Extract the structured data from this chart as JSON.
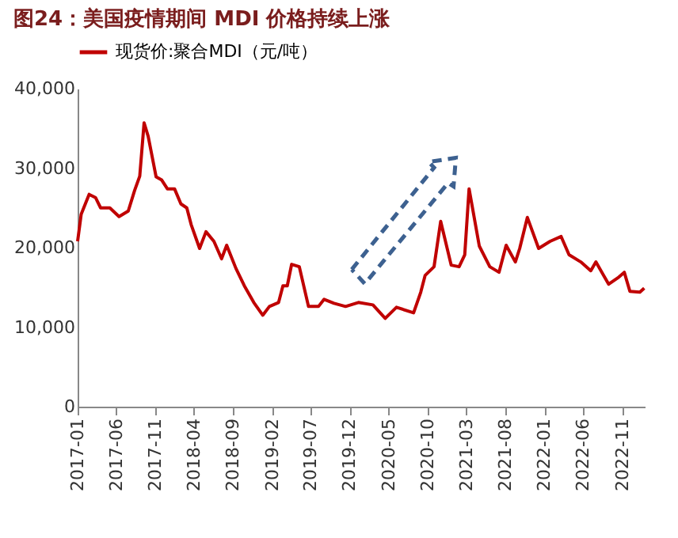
{
  "chart_data": {
    "type": "line",
    "title": "图24：美国疫情期间 MDI 价格持续上涨",
    "x": [
      "2017-01-01",
      "2017-01-15",
      "2017-02-15",
      "2017-03-12",
      "2017-04-01",
      "2017-05-07",
      "2017-06-12",
      "2017-07-18",
      "2017-08-12",
      "2017-09-01",
      "2017-09-18",
      "2017-10-04",
      "2017-11-04",
      "2017-11-26",
      "2017-12-18",
      "2018-01-15",
      "2018-02-09",
      "2018-03-04",
      "2018-03-21",
      "2018-04-23",
      "2018-05-18",
      "2018-06-18",
      "2018-07-18",
      "2018-08-07",
      "2018-09-12",
      "2018-10-15",
      "2018-11-21",
      "2018-12-26",
      "2019-01-21",
      "2019-02-26",
      "2019-03-15",
      "2019-04-01",
      "2019-04-18",
      "2019-05-18",
      "2019-06-23",
      "2019-08-01",
      "2019-08-23",
      "2019-10-01",
      "2019-11-15",
      "2020-01-04",
      "2020-03-01",
      "2020-04-18",
      "2020-06-01",
      "2020-08-07",
      "2020-09-04",
      "2020-09-21",
      "2020-10-26",
      "2020-11-21",
      "2021-01-01",
      "2021-02-01",
      "2021-02-23",
      "2021-03-12",
      "2021-04-21",
      "2021-06-01",
      "2021-07-07",
      "2021-08-04",
      "2021-09-09",
      "2021-09-26",
      "2021-10-26",
      "2021-12-09",
      "2022-01-23",
      "2022-03-07",
      "2022-04-07",
      "2022-05-23",
      "2022-07-01",
      "2022-07-21",
      "2022-09-09",
      "2022-10-15",
      "2022-11-09",
      "2022-12-01",
      "2023-01-09",
      "2023-01-26"
    ],
    "series": [
      {
        "name": "现货价:聚合MDI（元/吨）",
        "color": "#c00000",
        "values": [
          20800,
          24200,
          26700,
          26300,
          25000,
          25000,
          23900,
          24600,
          27200,
          29000,
          35700,
          34000,
          28900,
          28500,
          27400,
          27400,
          25500,
          25000,
          22900,
          19900,
          22000,
          20800,
          18600,
          20300,
          17400,
          15200,
          13100,
          11500,
          12600,
          13100,
          15200,
          15200,
          17900,
          17600,
          12600,
          12600,
          13500,
          13000,
          12600,
          13100,
          12800,
          11100,
          12500,
          11800,
          14400,
          16500,
          17600,
          23300,
          17800,
          17600,
          19100,
          27400,
          20200,
          17600,
          16900,
          20300,
          18200,
          19900,
          23800,
          19900,
          20800,
          21400,
          19100,
          18200,
          17100,
          18200,
          15400,
          16200,
          16900,
          14500,
          14400,
          14900
        ]
      }
    ],
    "xlim": [
      "2017-01-01",
      "2023-01-28"
    ],
    "xticks": [
      "2017-01",
      "2017-06",
      "2017-11",
      "2018-04",
      "2018-09",
      "2019-02",
      "2019-07",
      "2019-12",
      "2020-05",
      "2020-10",
      "2021-03",
      "2021-08",
      "2022-01",
      "2022-06",
      "2022-11"
    ],
    "ylim": [
      0,
      40000
    ],
    "yticks": [
      0,
      {
        "value": 10000,
        "label": "10,000"
      },
      {
        "value": 20000,
        "label": "20,000"
      },
      {
        "value": 30000,
        "label": "30,000"
      },
      {
        "value": 40000,
        "label": "40,000"
      }
    ],
    "grid": false,
    "legend": "top",
    "marker": "none",
    "line_style": "solid"
  }
}
